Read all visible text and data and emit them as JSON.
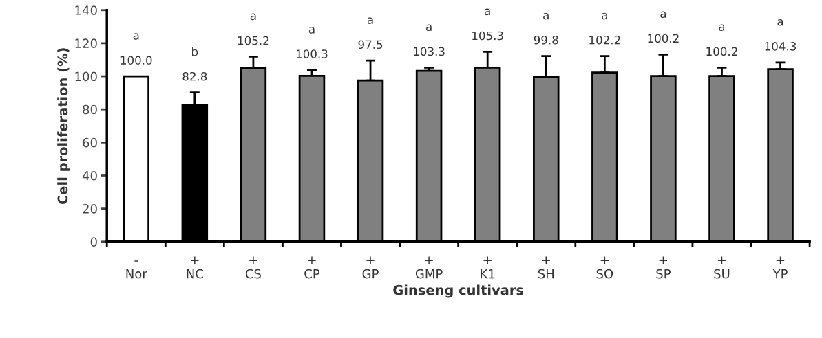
{
  "chart_data": {
    "type": "bar",
    "xlabel": "Ginseng cultivars",
    "ylabel": "Cell proliferation (%)",
    "categories": [
      "-\nNor",
      "+\nNC",
      "+\nCS",
      "+\nCP",
      "+\nGP",
      "+\nGMP",
      "+\nK1",
      "+\nSH",
      "+\nSO",
      "+\nSP",
      "+\nSU",
      "+\nYP"
    ],
    "values": [
      100.0,
      82.8,
      105.2,
      100.3,
      97.5,
      103.3,
      105.3,
      99.8,
      102.2,
      100.2,
      100.2,
      104.3
    ],
    "errors": [
      null,
      7.4,
      6.7,
      3.5,
      12,
      2,
      9.5,
      12.4,
      10,
      13,
      5.1,
      4.1
    ],
    "colors": [
      "#ffffff",
      "#000000",
      "#808080",
      "#808080",
      "#808080",
      "#808080",
      "#808080",
      "#808080",
      "#808080",
      "#808080",
      "#808080",
      "#808080"
    ],
    "value_labels": [
      "100.0",
      "82.8",
      "105.2",
      "100.3",
      "97.5",
      "103.3",
      "105.3",
      "99.8",
      "102.2",
      "100.2",
      "100.2",
      "104.3"
    ],
    "annotations": [
      "a",
      "b",
      "a",
      "a",
      "a",
      "a",
      "a",
      "a",
      "a",
      "a",
      "a",
      "a"
    ],
    "ylim": [
      0,
      140
    ],
    "yticks": [
      0,
      20,
      40,
      60,
      80,
      100,
      120,
      140
    ],
    "grid": false,
    "legend": false
  }
}
